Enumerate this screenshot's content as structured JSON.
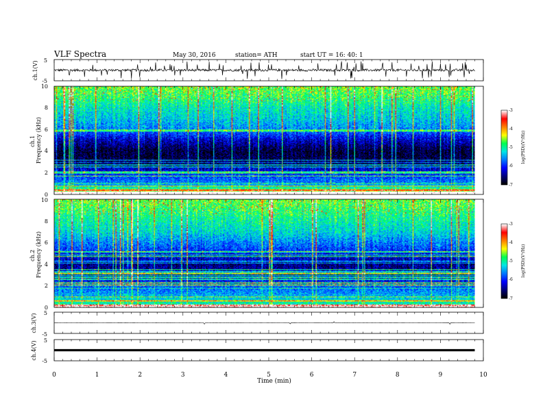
{
  "header": {
    "title": "VLF  Spectra",
    "date": "May 30, 2016",
    "station": "station= ATH",
    "start": "start  UT  =    16: 40: 1"
  },
  "chart_data": [
    {
      "type": "line",
      "panel": "ch1-waveform",
      "ylabel": "ch.1(V)",
      "ylim": [
        -5,
        5
      ],
      "yticks": [
        "5",
        "-5"
      ],
      "baseline": 0,
      "xlim": [
        0,
        10
      ]
    },
    {
      "type": "heatmap",
      "panel": "ch1-spectrogram",
      "ylabel": "ch.1\nFrequency  (kHz)",
      "ylim": [
        0,
        10
      ],
      "yticks": [
        "0",
        "2",
        "4",
        "6",
        "8",
        "10"
      ],
      "xlim": [
        0,
        10
      ],
      "colorbar": {
        "label": "log(PSD)(V²/Hz)",
        "range": [
          -7,
          -3
        ],
        "ticks": [
          "-3",
          "-4",
          "-5",
          "-6",
          "-7"
        ]
      },
      "band_profile": [
        {
          "freq_khz": 0.3,
          "level": -4.5
        },
        {
          "freq_khz": 1.0,
          "level": -5.6
        },
        {
          "freq_khz": 2.0,
          "level": -6.0
        },
        {
          "freq_khz": 3.0,
          "level": -6.7
        },
        {
          "freq_khz": 4.0,
          "level": -6.8
        },
        {
          "freq_khz": 5.0,
          "level": -6.3
        },
        {
          "freq_khz": 6.0,
          "level": -5.6
        },
        {
          "freq_khz": 7.0,
          "level": -5.3
        },
        {
          "freq_khz": 8.0,
          "level": -5.1
        },
        {
          "freq_khz": 9.0,
          "level": -4.8
        },
        {
          "freq_khz": 10.0,
          "level": -4.6
        }
      ]
    },
    {
      "type": "heatmap",
      "panel": "ch2-spectrogram",
      "ylabel": "ch.2\nFrequency  (kHz)",
      "ylim": [
        0,
        10
      ],
      "yticks": [
        "0",
        "2",
        "4",
        "6",
        "8",
        "10"
      ],
      "xlim": [
        0,
        10
      ],
      "colorbar": {
        "label": "log(PSD)(V²/Hz)",
        "range": [
          -7,
          -3
        ],
        "ticks": [
          "-3",
          "-4",
          "-5",
          "-6",
          "-7"
        ]
      },
      "band_profile": [
        {
          "freq_khz": 0.3,
          "level": -5.0
        },
        {
          "freq_khz": 1.0,
          "level": -5.4
        },
        {
          "freq_khz": 2.0,
          "level": -5.8
        },
        {
          "freq_khz": 3.0,
          "level": -6.4
        },
        {
          "freq_khz": 4.0,
          "level": -6.5
        },
        {
          "freq_khz": 5.0,
          "level": -6.0
        },
        {
          "freq_khz": 6.0,
          "level": -5.6
        },
        {
          "freq_khz": 7.0,
          "level": -5.2
        },
        {
          "freq_khz": 8.0,
          "level": -5.0
        },
        {
          "freq_khz": 9.0,
          "level": -4.8
        },
        {
          "freq_khz": 10.0,
          "level": -4.6
        }
      ]
    },
    {
      "type": "line",
      "panel": "ch3-waveform",
      "ylabel": "ch.3(V)",
      "ylim": [
        -5,
        5
      ],
      "yticks": [
        "5",
        "-5"
      ],
      "baseline": 0,
      "xlim": [
        0,
        10
      ]
    },
    {
      "type": "line",
      "panel": "ch4-waveform",
      "ylabel": "ch.4(V)",
      "ylim": [
        -5,
        5
      ],
      "yticks": [
        "5",
        "-5"
      ],
      "baseline": 0,
      "xlim": [
        0,
        10
      ]
    }
  ],
  "xaxis": {
    "label": "Time  (min)",
    "range": [
      0,
      10
    ],
    "data_end": 9.8,
    "ticks": [
      "0",
      "1",
      "2",
      "3",
      "4",
      "5",
      "6",
      "7",
      "8",
      "9",
      "10"
    ]
  },
  "colors": {
    "colormap": [
      "#000000",
      "#00007a",
      "#0000ff",
      "#0078ff",
      "#00e6e6",
      "#00ff50",
      "#ffff00",
      "#ff8000",
      "#ff0000",
      "#ffffff"
    ],
    "trace": "#000000",
    "frame": "#000000"
  }
}
